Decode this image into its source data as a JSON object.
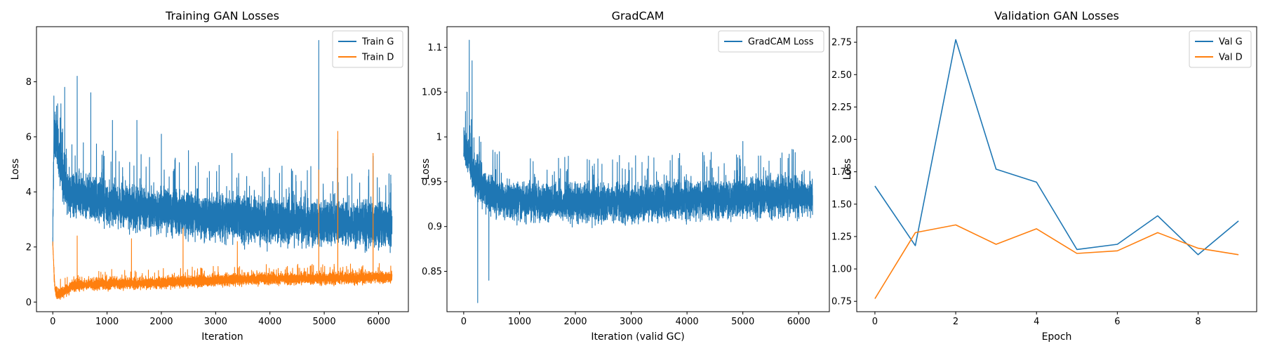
{
  "colors": {
    "blue": "#1f77b4",
    "orange": "#ff7f0e"
  },
  "chart_data": [
    {
      "type": "line",
      "title": "Training GAN Losses",
      "xlabel": "Iteration",
      "ylabel": "Loss",
      "xlim": [
        -300,
        6550
      ],
      "ylim": [
        -0.35,
        10.0
      ],
      "xticks": [
        0,
        1000,
        2000,
        3000,
        4000,
        5000,
        6000
      ],
      "yticks": [
        0,
        2,
        4,
        6,
        8
      ],
      "legend": "top-right",
      "n_points": 6250,
      "series": [
        {
          "name": "Train G",
          "color": "#1f77b4",
          "anchors": [
            [
              0,
              2.5
            ],
            [
              20,
              5.6
            ],
            [
              60,
              6.2
            ],
            [
              120,
              5.0
            ],
            [
              250,
              4.1
            ],
            [
              500,
              3.9
            ],
            [
              1000,
              3.6
            ],
            [
              2000,
              3.3
            ],
            [
              3000,
              3.1
            ],
            [
              4000,
              2.9
            ],
            [
              5000,
              2.9
            ],
            [
              6250,
              2.8
            ]
          ],
          "spread": 0.85,
          "peaks": [
            [
              30,
              6.6
            ],
            [
              90,
              7.2
            ],
            [
              150,
              7.2
            ],
            [
              220,
              7.8
            ],
            [
              450,
              8.2
            ],
            [
              700,
              7.6
            ],
            [
              1100,
              6.6
            ],
            [
              1550,
              6.6
            ],
            [
              2000,
              6.1
            ],
            [
              2500,
              5.5
            ],
            [
              3300,
              5.4
            ],
            [
              4900,
              9.5
            ],
            [
              5250,
              5.9
            ],
            [
              5900,
              5.3
            ],
            [
              6230,
              4.3
            ]
          ]
        },
        {
          "name": "Train D",
          "color": "#ff7f0e",
          "anchors": [
            [
              0,
              2.2
            ],
            [
              15,
              1.4
            ],
            [
              40,
              0.5
            ],
            [
              80,
              0.25
            ],
            [
              200,
              0.4
            ],
            [
              400,
              0.6
            ],
            [
              800,
              0.65
            ],
            [
              2000,
              0.7
            ],
            [
              3000,
              0.8
            ],
            [
              4000,
              0.85
            ],
            [
              5000,
              0.85
            ],
            [
              6250,
              0.9
            ]
          ],
          "spread": 0.22,
          "peaks": [
            [
              450,
              2.4
            ],
            [
              1450,
              2.3
            ],
            [
              2400,
              2.7
            ],
            [
              3400,
              2.2
            ],
            [
              4900,
              4.8
            ],
            [
              5250,
              6.2
            ],
            [
              5900,
              5.4
            ]
          ]
        }
      ]
    },
    {
      "type": "line",
      "title": "GradCAM",
      "xlabel": "Iteration (valid GC)",
      "ylabel": "Loss",
      "xlim": [
        -300,
        6550
      ],
      "ylim": [
        0.805,
        1.123
      ],
      "xticks": [
        0,
        1000,
        2000,
        3000,
        4000,
        5000,
        6000
      ],
      "yticks": [
        0.85,
        0.9,
        0.95,
        1.0,
        1.05,
        1.1
      ],
      "legend": "top-right",
      "n_points": 6250,
      "series": [
        {
          "name": "GradCAM Loss",
          "color": "#1f77b4",
          "anchors": [
            [
              0,
              0.99
            ],
            [
              100,
              0.975
            ],
            [
              200,
              0.955
            ],
            [
              500,
              0.935
            ],
            [
              1000,
              0.928
            ],
            [
              2000,
              0.926
            ],
            [
              3000,
              0.927
            ],
            [
              4000,
              0.93
            ],
            [
              5000,
              0.932
            ],
            [
              6250,
              0.935
            ]
          ],
          "spread": 0.022,
          "peaks": [
            [
              60,
              1.05
            ],
            [
              100,
              1.108
            ],
            [
              150,
              1.085
            ],
            [
              250,
              0.815
            ],
            [
              450,
              0.84
            ],
            [
              5000,
              0.995
            ]
          ]
        }
      ]
    },
    {
      "type": "line",
      "title": "Validation GAN Losses",
      "xlabel": "Epoch",
      "ylabel": "Loss",
      "xlim": [
        -0.45,
        9.45
      ],
      "ylim": [
        0.67,
        2.87
      ],
      "xticks": [
        0,
        2,
        4,
        6,
        8
      ],
      "yticks": [
        0.75,
        1.0,
        1.25,
        1.5,
        1.75,
        2.0,
        2.25,
        2.5,
        2.75
      ],
      "xtick_labels": [
        "0",
        "2",
        "4",
        "6",
        "8"
      ],
      "ytick_labels": [
        "0.75",
        "1.00",
        "1.25",
        "1.50",
        "1.75",
        "2.00",
        "2.25",
        "2.50",
        "2.75"
      ],
      "legend": "top-right",
      "x": [
        0,
        1,
        2,
        3,
        4,
        5,
        6,
        7,
        8,
        9
      ],
      "series": [
        {
          "name": "Val G",
          "color": "#1f77b4",
          "values": [
            1.64,
            1.18,
            2.77,
            1.77,
            1.67,
            1.15,
            1.19,
            1.41,
            1.11,
            1.37
          ]
        },
        {
          "name": "Val D",
          "color": "#ff7f0e",
          "values": [
            0.77,
            1.28,
            1.34,
            1.19,
            1.31,
            1.12,
            1.14,
            1.28,
            1.16,
            1.11
          ]
        }
      ]
    }
  ]
}
